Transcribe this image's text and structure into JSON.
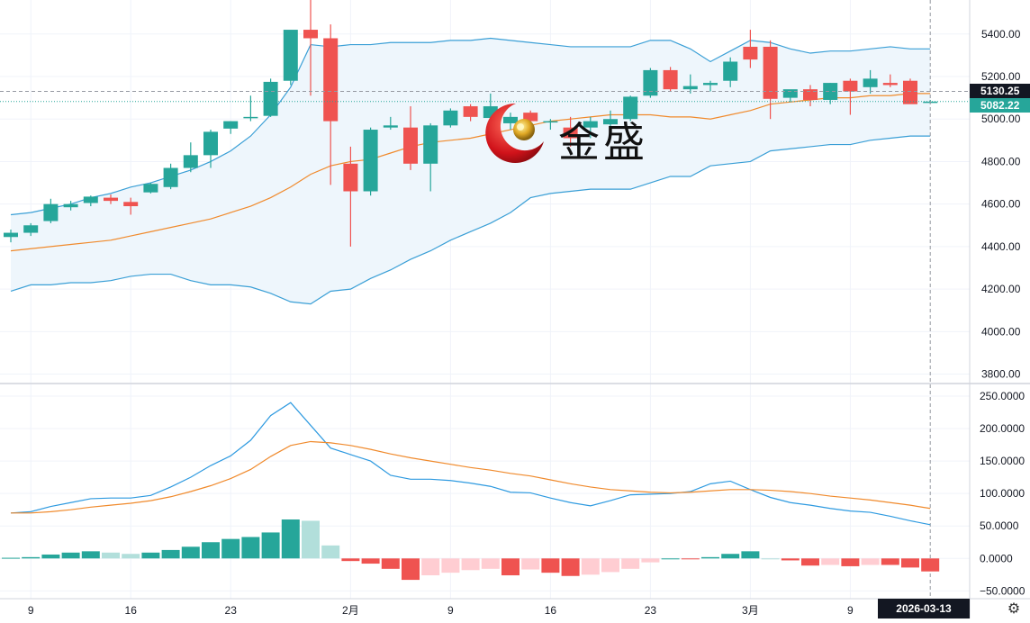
{
  "chart_data": [
    {
      "type": "candlestick",
      "title": "",
      "price_scale": {
        "ylim": [
          3760,
          5560
        ],
        "ticks": [
          3800,
          4000,
          4200,
          4400,
          4600,
          4800,
          5000,
          5200,
          5400
        ],
        "tick_labels": [
          "3800.00",
          "4000.00",
          "4200.00",
          "4400.00",
          "4600.00",
          "4800.00",
          "5000.00",
          "5200.00",
          "5400.00"
        ]
      },
      "x_ticks": [
        {
          "index": 1,
          "label": "9"
        },
        {
          "index": 6,
          "label": "16"
        },
        {
          "index": 11,
          "label": "23"
        },
        {
          "index": 17,
          "label": "2月"
        },
        {
          "index": 22,
          "label": "9"
        },
        {
          "index": 27,
          "label": "16"
        },
        {
          "index": 32,
          "label": "23"
        },
        {
          "index": 37,
          "label": "3月"
        },
        {
          "index": 42,
          "label": "9"
        }
      ],
      "candles": [
        [
          4445,
          4480,
          4420,
          4465
        ],
        [
          4465,
          4510,
          4450,
          4500
        ],
        [
          4520,
          4625,
          4510,
          4600
        ],
        [
          4585,
          4615,
          4570,
          4600
        ],
        [
          4605,
          4640,
          4590,
          4635
        ],
        [
          4630,
          4645,
          4600,
          4615
        ],
        [
          4610,
          4630,
          4550,
          4590
        ],
        [
          4655,
          4700,
          4650,
          4695
        ],
        [
          4680,
          4790,
          4670,
          4770
        ],
        [
          4770,
          4890,
          4750,
          4830
        ],
        [
          4830,
          4950,
          4770,
          4940
        ],
        [
          4955,
          4990,
          4930,
          4990
        ],
        [
          5010,
          5110,
          4990,
          5010
        ],
        [
          5015,
          5190,
          5010,
          5175
        ],
        [
          5180,
          5410,
          5160,
          5420
        ],
        [
          5420,
          5570,
          5110,
          5380
        ],
        [
          5380,
          5445,
          4690,
          4990
        ],
        [
          4790,
          4870,
          4400,
          4660
        ],
        [
          4660,
          4960,
          4640,
          4950
        ],
        [
          4960,
          5010,
          4950,
          4970
        ],
        [
          4960,
          5060,
          4760,
          4790
        ],
        [
          4790,
          4980,
          4660,
          4970
        ],
        [
          4970,
          5050,
          4960,
          5040
        ],
        [
          5060,
          5070,
          4990,
          5010
        ],
        [
          5005,
          5120,
          4990,
          5060
        ],
        [
          4980,
          5030,
          4950,
          5010
        ],
        [
          5030,
          5040,
          4950,
          4990
        ],
        [
          4990,
          5000,
          4950,
          4990
        ],
        [
          4960,
          5010,
          4870,
          4910
        ],
        [
          4960,
          5010,
          4910,
          4990
        ],
        [
          4975,
          5040,
          4950,
          5000
        ],
        [
          5000,
          5110,
          4990,
          5105
        ],
        [
          5110,
          5240,
          5100,
          5230
        ],
        [
          5230,
          5245,
          5130,
          5140
        ],
        [
          5140,
          5210,
          5120,
          5155
        ],
        [
          5160,
          5180,
          5130,
          5170
        ],
        [
          5180,
          5290,
          5150,
          5270
        ],
        [
          5340,
          5420,
          5240,
          5280
        ],
        [
          5340,
          5370,
          5000,
          5095
        ],
        [
          5100,
          5130,
          5080,
          5140
        ],
        [
          5140,
          5160,
          5060,
          5090
        ],
        [
          5090,
          5170,
          5070,
          5170
        ],
        [
          5180,
          5190,
          5020,
          5130
        ],
        [
          5150,
          5230,
          5120,
          5190
        ],
        [
          5170,
          5210,
          5150,
          5160
        ],
        [
          5180,
          5190,
          5080,
          5070
        ],
        [
          5082,
          5090,
          5074,
          5082
        ]
      ],
      "bollinger_upper": [
        4550,
        4560,
        4580,
        4600,
        4630,
        4650,
        4680,
        4700,
        4730,
        4760,
        4800,
        4850,
        4920,
        5020,
        5150,
        5350,
        5340,
        5350,
        5350,
        5360,
        5360,
        5360,
        5370,
        5370,
        5380,
        5370,
        5360,
        5350,
        5340,
        5340,
        5340,
        5340,
        5370,
        5370,
        5330,
        5270,
        5320,
        5370,
        5360,
        5330,
        5310,
        5320,
        5320,
        5330,
        5340,
        5330,
        5330
      ],
      "bollinger_middle": [
        4380,
        4390,
        4400,
        4410,
        4420,
        4430,
        4450,
        4470,
        4490,
        4510,
        4530,
        4560,
        4590,
        4630,
        4680,
        4740,
        4780,
        4800,
        4810,
        4840,
        4870,
        4890,
        4900,
        4910,
        4930,
        4950,
        4970,
        4990,
        5000,
        5010,
        5020,
        5020,
        5020,
        5010,
        5010,
        5000,
        5020,
        5040,
        5070,
        5080,
        5090,
        5100,
        5100,
        5110,
        5110,
        5120,
        5120
      ],
      "bollinger_lower": [
        4190,
        4220,
        4220,
        4230,
        4230,
        4240,
        4260,
        4270,
        4270,
        4240,
        4220,
        4220,
        4210,
        4180,
        4140,
        4130,
        4190,
        4200,
        4250,
        4290,
        4340,
        4380,
        4430,
        4470,
        4510,
        4560,
        4630,
        4650,
        4660,
        4670,
        4670,
        4670,
        4700,
        4730,
        4730,
        4780,
        4790,
        4800,
        4850,
        4860,
        4870,
        4880,
        4880,
        4900,
        4910,
        4920,
        4920
      ],
      "last_price_label": "5130.25",
      "current_price_label": "5082.22",
      "colors": {
        "up": "#26a69a",
        "down": "#ef5350",
        "band_line": "#3a9fd6",
        "band_fill": "#eef6fc",
        "middle": "#f08a2c"
      }
    },
    {
      "type": "macd",
      "title": "",
      "ylim": [
        -62,
        268
      ],
      "ticks": [
        -50,
        0,
        50,
        100,
        150,
        200,
        250
      ],
      "tick_labels": [
        "−50.0000",
        "0.0000",
        "50.0000",
        "100.0000",
        "150.0000",
        "200.0000",
        "250.0000"
      ],
      "macd": [
        70,
        72,
        80,
        86,
        92,
        93,
        93,
        97,
        110,
        125,
        143,
        158,
        182,
        220,
        240,
        205,
        170,
        160,
        150,
        128,
        122,
        122,
        120,
        116,
        111,
        102,
        101,
        93,
        86,
        81,
        89,
        98,
        99,
        100,
        103,
        115,
        119,
        106,
        94,
        86,
        82,
        77,
        73,
        71,
        65,
        58,
        52
      ],
      "signal": [
        70,
        70,
        72,
        75,
        79,
        82,
        85,
        89,
        95,
        103,
        112,
        123,
        137,
        157,
        174,
        180,
        178,
        174,
        168,
        161,
        155,
        150,
        145,
        140,
        136,
        131,
        127,
        121,
        115,
        110,
        106,
        104,
        102,
        101,
        102,
        104,
        106,
        106,
        105,
        103,
        100,
        96,
        93,
        90,
        86,
        82,
        77
      ],
      "histogram": [
        1,
        2,
        6,
        9,
        11,
        9,
        7,
        9,
        13,
        18,
        25,
        30,
        33,
        40,
        60,
        58,
        20,
        -4,
        -8,
        -16,
        -33,
        -26,
        -22,
        -18,
        -16,
        -26,
        -17,
        -22,
        -27,
        -25,
        -21,
        -16,
        -6,
        0,
        -1,
        2,
        7,
        11,
        0,
        -3,
        -11,
        -10,
        -12,
        -10,
        -10,
        -14,
        -20
      ]
    }
  ],
  "axis": {
    "date_badge": "2026-03-13"
  },
  "logo": {
    "text": "金盛"
  },
  "icons": {
    "settings": "gear-icon"
  }
}
